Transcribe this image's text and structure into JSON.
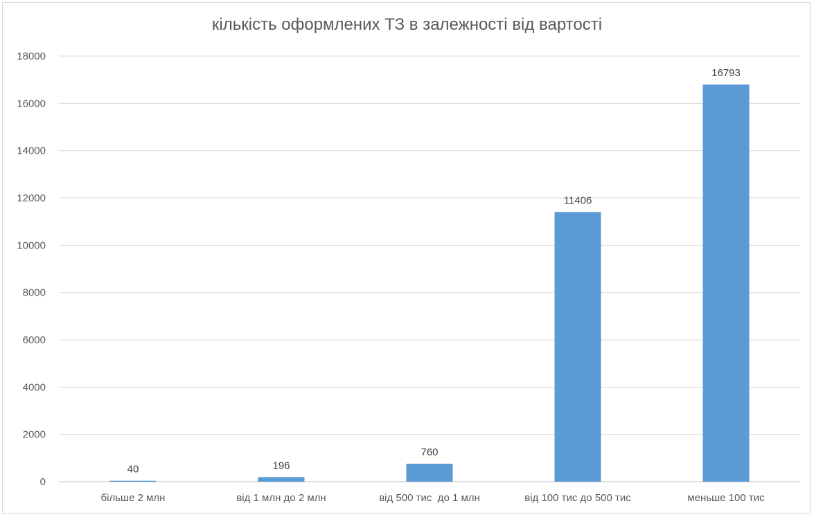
{
  "chart_data": {
    "type": "bar",
    "title": "кількість оформлених ТЗ в залежності від вартості",
    "categories": [
      "більше 2 млн",
      "від 1 млн до 2 млн",
      "від 500 тис  до 1 млн",
      "від 100 тис до 500 тис",
      "меньше 100 тис"
    ],
    "series": [
      {
        "values": [
          40,
          196,
          760,
          11406,
          16793
        ]
      }
    ],
    "ylim": [
      0,
      18000
    ],
    "yticks": [
      0,
      2000,
      4000,
      6000,
      8000,
      10000,
      12000,
      14000,
      16000,
      18000
    ],
    "grid": true,
    "data_labels": true,
    "bar_color": "#5b9bd5",
    "grid_color": "#d9d9d9"
  }
}
